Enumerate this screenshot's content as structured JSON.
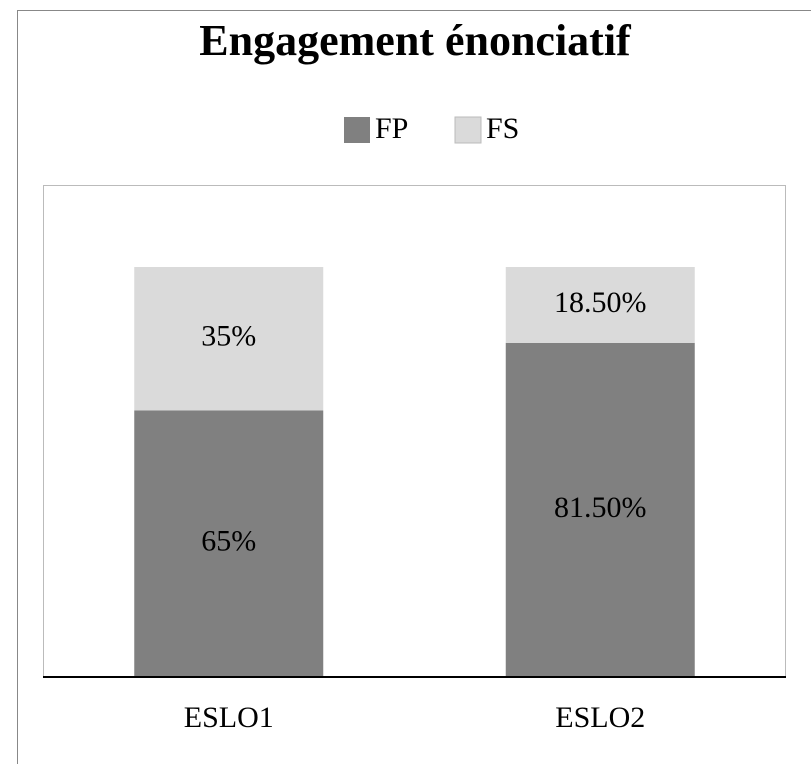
{
  "chart_data": {
    "type": "stacked_bar",
    "title": "Engagement énonciatif",
    "categories": [
      "ESLO1",
      "ESLO2"
    ],
    "series": [
      {
        "name": "FP",
        "color": "#808080",
        "values": [
          65,
          81.5
        ],
        "value_labels": [
          "65%",
          "81.50%"
        ]
      },
      {
        "name": "FS",
        "color": "#dadada",
        "values": [
          35,
          18.5
        ],
        "value_labels": [
          "35%",
          "18.50%"
        ]
      }
    ],
    "ylim": [
      0,
      100
    ],
    "legend": "top"
  }
}
